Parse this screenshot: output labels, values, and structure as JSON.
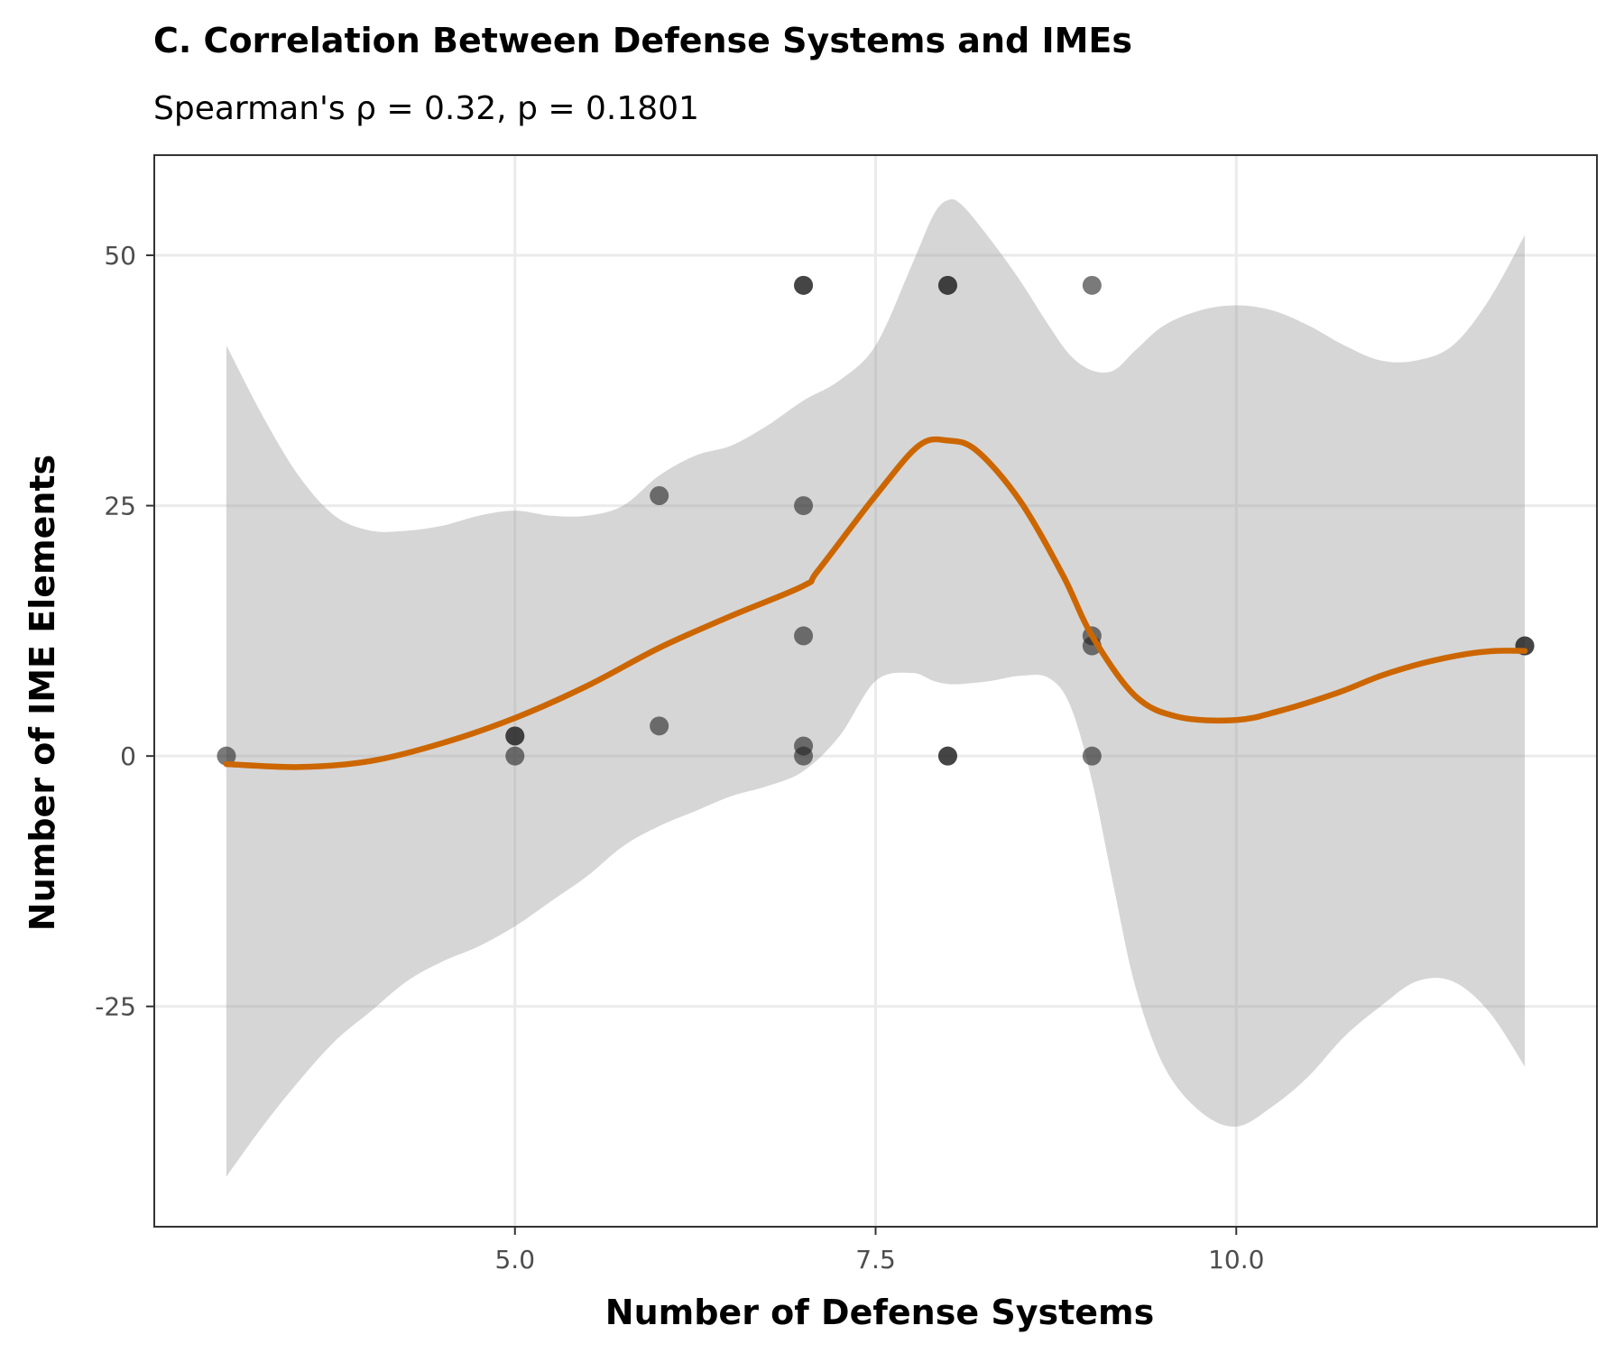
{
  "chart_data": {
    "type": "scatter",
    "title": "C. Correlation Between Defense Systems and IMEs",
    "subtitle": "Spearman's ρ = 0.32, p = 0.1801",
    "xlabel": "Number of Defense Systems",
    "ylabel": "Number of IME Elements",
    "xlim": [
      2.5,
      12.5
    ],
    "ylim": [
      -47,
      60
    ],
    "x_ticks": [
      5.0,
      7.5,
      10.0
    ],
    "x_tick_labels": [
      "5.0",
      "7.5",
      "10.0"
    ],
    "y_ticks": [
      -25,
      0,
      25,
      50
    ],
    "y_tick_labels": [
      "-25",
      "0",
      "25",
      "50"
    ],
    "grid": true,
    "legend": "none",
    "points": [
      {
        "x": 3,
        "y": 0
      },
      {
        "x": 5,
        "y": 2
      },
      {
        "x": 5,
        "y": 2
      },
      {
        "x": 5,
        "y": 0
      },
      {
        "x": 6,
        "y": 26
      },
      {
        "x": 6,
        "y": 3
      },
      {
        "x": 7,
        "y": 47
      },
      {
        "x": 7,
        "y": 47
      },
      {
        "x": 7,
        "y": 25
      },
      {
        "x": 7,
        "y": 12
      },
      {
        "x": 7,
        "y": 1
      },
      {
        "x": 7,
        "y": 0
      },
      {
        "x": 8,
        "y": 47
      },
      {
        "x": 8,
        "y": 47
      },
      {
        "x": 8,
        "y": 0
      },
      {
        "x": 8,
        "y": 0
      },
      {
        "x": 9,
        "y": 47
      },
      {
        "x": 9,
        "y": 12
      },
      {
        "x": 9,
        "y": 11
      },
      {
        "x": 9,
        "y": 0
      },
      {
        "x": 12,
        "y": 11
      },
      {
        "x": 12,
        "y": 11
      }
    ],
    "smooth_line": {
      "x": [
        3.0,
        3.5,
        4.0,
        4.5,
        5.0,
        5.5,
        6.0,
        6.5,
        7.0,
        7.1,
        7.5,
        7.8,
        8.0,
        8.2,
        8.5,
        8.8,
        9.0,
        9.3,
        9.6,
        10.0,
        10.3,
        10.7,
        11.0,
        11.3,
        11.6,
        11.8,
        12.0
      ],
      "y": [
        -0.8,
        -1.1,
        -0.5,
        1.3,
        3.8,
        7.0,
        10.8,
        14.0,
        17.0,
        18.5,
        26.0,
        31.0,
        31.5,
        30.5,
        25.5,
        18.0,
        12.0,
        6.0,
        3.9,
        3.6,
        4.5,
        6.3,
        8.0,
        9.3,
        10.2,
        10.5,
        10.5
      ]
    },
    "confidence_band": {
      "x": [
        3.0,
        3.25,
        3.5,
        3.75,
        4.0,
        4.25,
        4.5,
        4.75,
        5.0,
        5.25,
        5.5,
        5.75,
        6.0,
        6.25,
        6.5,
        6.75,
        7.0,
        7.25,
        7.5,
        7.75,
        7.9,
        8.0,
        8.1,
        8.3,
        8.5,
        8.7,
        8.85,
        9.0,
        9.15,
        9.3,
        9.5,
        9.75,
        10.0,
        10.25,
        10.5,
        10.75,
        11.0,
        11.25,
        11.5,
        11.75,
        12.0
      ],
      "lower": [
        -42,
        -37,
        -32.5,
        -28.5,
        -25.5,
        -22.5,
        -20.5,
        -19,
        -17,
        -14.5,
        -12,
        -9,
        -7,
        -5.5,
        -4,
        -3,
        -1.5,
        2,
        7.5,
        8.3,
        7.5,
        7.2,
        7.2,
        7.5,
        8,
        7.8,
        5,
        -2.5,
        -13,
        -23,
        -31,
        -35.5,
        -37,
        -35,
        -32,
        -28,
        -25,
        -22.5,
        -22.5,
        -25.5,
        -31
      ],
      "upper": [
        41,
        34,
        28,
        24,
        22.5,
        22.5,
        23,
        24,
        24.5,
        24,
        24,
        25,
        28,
        30,
        31,
        33,
        35.5,
        37.5,
        41,
        49,
        54,
        55.5,
        55,
        51.5,
        47.5,
        43,
        40,
        38.5,
        38.5,
        40.5,
        43,
        44.5,
        45,
        44.5,
        43,
        41,
        39.5,
        39.5,
        41,
        45.5,
        52
      ]
    }
  }
}
